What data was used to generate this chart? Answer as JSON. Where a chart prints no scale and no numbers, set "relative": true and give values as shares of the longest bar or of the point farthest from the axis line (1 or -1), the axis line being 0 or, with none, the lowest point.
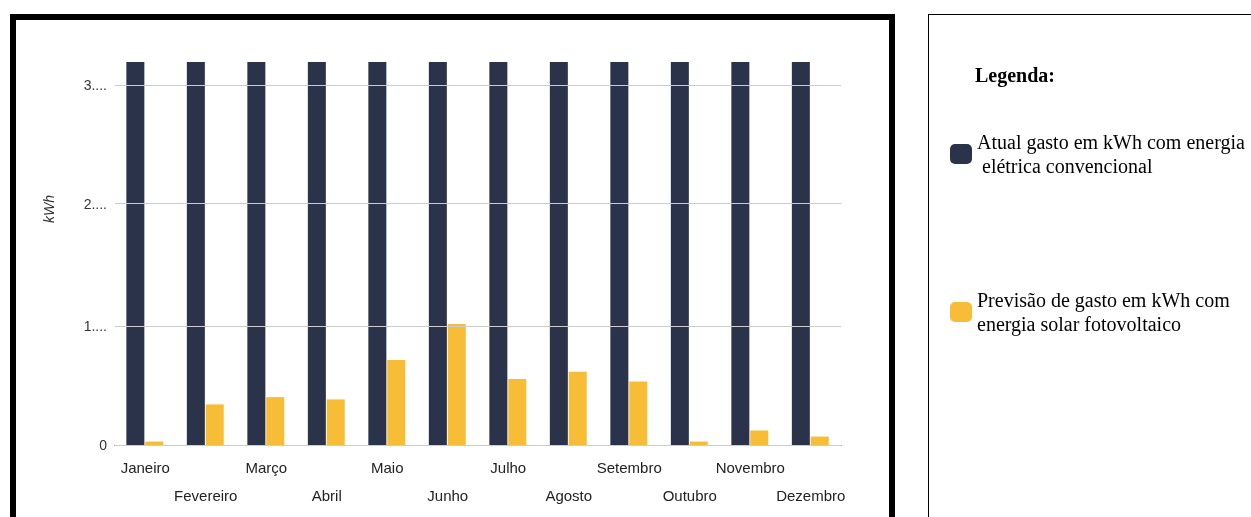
{
  "chart_data": {
    "type": "bar",
    "ylabel": "kWh",
    "legend_title": "Legenda:",
    "legend": "right",
    "grid": "y",
    "relative": true,
    "categories": [
      "Janeiro",
      "Fevereiro",
      "Março",
      "Abril",
      "Maio",
      "Junho",
      "Julho",
      "Agosto",
      "Setembro",
      "Outubro",
      "Novembro",
      "Dezembro"
    ],
    "annotations": [
      "0",
      "1....",
      "2....",
      "3...."
    ],
    "series": [
      {
        "name": "Atual gasto em kWh com energia elétrica convencional",
        "color": "#2a3349",
        "values": [
          1,
          1,
          1,
          1,
          1,
          1,
          1,
          1,
          1,
          1,
          1,
          1
        ]
      },
      {
        "name": "Previsão de gasto em kWh com energia solar fotovoltaico",
        "color": "#f7bd36",
        "values": [
          0.009,
          0.106,
          0.125,
          0.119,
          0.222,
          0.316,
          0.172,
          0.191,
          0.166,
          0.009,
          0.038,
          0.022
        ]
      }
    ]
  }
}
